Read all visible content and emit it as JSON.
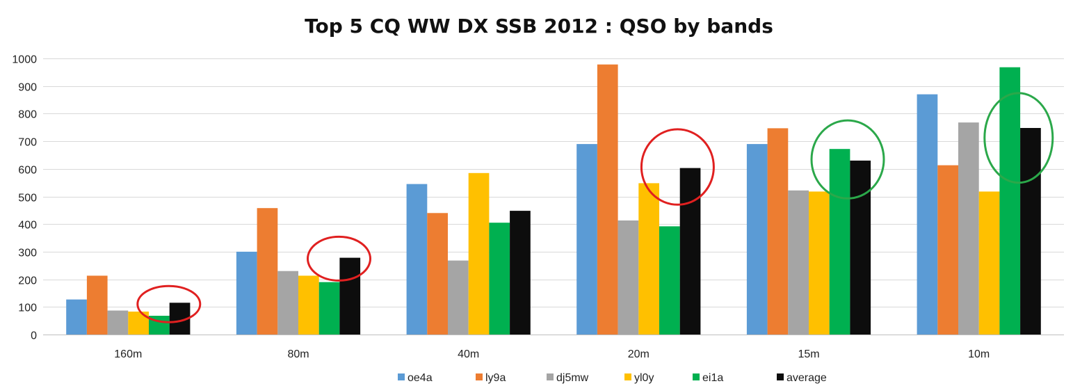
{
  "chart_data": {
    "type": "bar",
    "title": "Top 5 CQ WW DX SSB 2012 : QSO by bands",
    "xlabel": "",
    "ylabel": "",
    "categories": [
      "160m",
      "80m",
      "40m",
      "20m",
      "15m",
      "10m"
    ],
    "ylim": [
      0,
      1000
    ],
    "yticks": [
      0,
      100,
      200,
      300,
      400,
      500,
      600,
      700,
      800,
      900,
      1000
    ],
    "grid": true,
    "legend_position": "bottom",
    "series": [
      {
        "name": "oe4a",
        "color": "#5B9BD5",
        "values": [
          127,
          300,
          545,
          690,
          690,
          870
        ]
      },
      {
        "name": "ly9a",
        "color": "#ED7D31",
        "values": [
          213,
          458,
          440,
          978,
          747,
          613
        ]
      },
      {
        "name": "dj5mw",
        "color": "#A5A5A5",
        "values": [
          87,
          230,
          268,
          413,
          522,
          768
        ]
      },
      {
        "name": "yl0y",
        "color": "#FFC000",
        "values": [
          83,
          213,
          585,
          548,
          518,
          518
        ]
      },
      {
        "name": "ei1a",
        "color": "#00B050",
        "values": [
          68,
          190,
          405,
          392,
          672,
          968
        ]
      },
      {
        "name": "average",
        "color": "#0D0D0D",
        "values": [
          115,
          278,
          448,
          603,
          630,
          748
        ]
      }
    ],
    "annotations": [
      {
        "type": "ellipse",
        "color": "#E02020",
        "category": "160m",
        "series": "average"
      },
      {
        "type": "ellipse",
        "color": "#E02020",
        "category": "80m",
        "series": "average"
      },
      {
        "type": "ellipse",
        "color": "#E02020",
        "category": "20m",
        "series": "average"
      },
      {
        "type": "ellipse",
        "color": "#2BA84A",
        "category": "15m",
        "series": "average"
      },
      {
        "type": "ellipse",
        "color": "#2BA84A",
        "category": "10m",
        "series": "average"
      }
    ]
  }
}
